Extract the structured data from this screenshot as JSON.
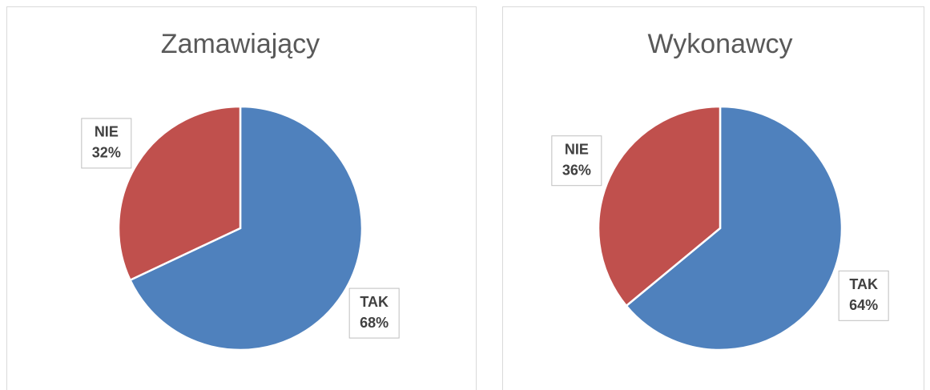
{
  "chart_data": [
    {
      "type": "pie",
      "title": "Zamawiający",
      "categories": [
        "TAK",
        "NIE"
      ],
      "values": [
        68,
        32
      ],
      "value_labels": [
        "68%",
        "32%"
      ],
      "colors": [
        "#4f81bd",
        "#c0504d"
      ]
    },
    {
      "type": "pie",
      "title": "Wykonawcy",
      "categories": [
        "TAK",
        "NIE"
      ],
      "values": [
        64,
        36
      ],
      "value_labels": [
        "64%",
        "36%"
      ],
      "colors": [
        "#4f81bd",
        "#c0504d"
      ]
    }
  ]
}
